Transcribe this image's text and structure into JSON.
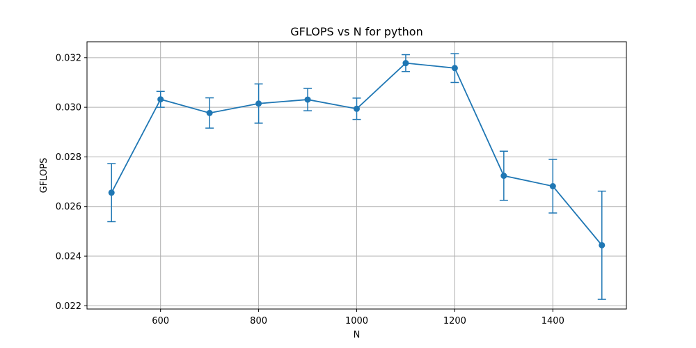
{
  "chart_data": {
    "type": "line",
    "title": "GFLOPS vs N for python",
    "xlabel": "N",
    "ylabel": "GFLOPS",
    "x": [
      500,
      600,
      700,
      800,
      900,
      1000,
      1100,
      1200,
      1300,
      1400,
      1500
    ],
    "series": [
      {
        "values": [
          0.02656,
          0.03032,
          0.02977,
          0.03015,
          0.03031,
          0.02994,
          0.03178,
          0.03158,
          0.02724,
          0.02682,
          0.02444
        ],
        "error": [
          0.00117,
          0.00032,
          0.00061,
          0.00079,
          0.00045,
          0.00043,
          0.00034,
          0.00058,
          0.00099,
          0.00108,
          0.00218
        ],
        "color": "#1f77b4"
      }
    ],
    "xlim": [
      450,
      1550
    ],
    "ylim": [
      0.02187,
      0.03264
    ],
    "xticks": [
      600,
      800,
      1000,
      1200,
      1400
    ],
    "xtick_labels": [
      "600",
      "800",
      "1000",
      "1200",
      "1400"
    ],
    "yticks": [
      0.022,
      0.024,
      0.026,
      0.028,
      0.03,
      0.032
    ],
    "ytick_labels": [
      "0.022",
      "0.024",
      "0.026",
      "0.028",
      "0.030",
      "0.032"
    ],
    "grid": true
  }
}
